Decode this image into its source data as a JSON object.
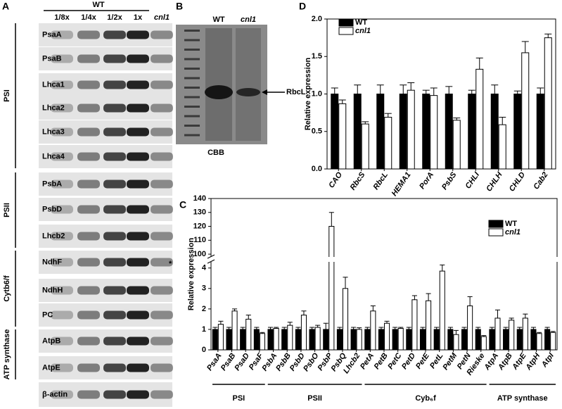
{
  "panel_a": {
    "label": "A",
    "header": "WT",
    "lanes": [
      "1/8x",
      "1/4x",
      "1/2x",
      "1x",
      "cnl1"
    ],
    "groups": [
      {
        "name": "PSI",
        "rows": [
          "PsaA",
          "PsaB",
          "Lhca1",
          "Lhca2",
          "Lhca3",
          "Lhca4"
        ]
      },
      {
        "name": "PSII",
        "rows": [
          "PsbA",
          "PsbD",
          "Lhcb2"
        ]
      },
      {
        "name": "Cytb6/f",
        "rows": [
          "NdhF",
          "NdhH",
          "PC"
        ]
      },
      {
        "name": "ATP synthase",
        "rows": [
          "AtpB",
          "AtpE"
        ]
      }
    ],
    "control": "β-actin",
    "note": "*"
  },
  "panel_b": {
    "label": "B",
    "lanes": [
      "WT",
      "cnl1"
    ],
    "band": "RbcL",
    "stain": "CBB"
  },
  "chart_data": [
    {
      "type": "bar",
      "label": "C",
      "ylabel": "Relative expression",
      "groups": [
        {
          "name": "PSI",
          "categories": [
            "PsaA",
            "PsaB",
            "PsaD",
            "PsaF"
          ]
        },
        {
          "name": "PSII",
          "categories": [
            "PsbA",
            "PsbB",
            "PsbD",
            "PsbO",
            "PsbP",
            "PsbQ",
            "Lhcb2"
          ]
        },
        {
          "name": "Cyb₆f",
          "categories": [
            "PetA",
            "PetB",
            "PetC",
            "PetD",
            "PetE",
            "PetL",
            "PetM",
            "PetN",
            "Rieske"
          ]
        },
        {
          "name": "ATP synthase",
          "categories": [
            "AtpA",
            "AtpB",
            "AtpE",
            "AtpH",
            "AtpI"
          ]
        }
      ],
      "series": [
        {
          "name": "WT",
          "color": "#000000",
          "values": [
            1,
            1,
            1,
            1,
            1,
            1,
            1,
            1,
            1,
            1,
            1,
            1,
            1,
            1,
            1,
            1,
            1,
            1,
            1,
            1,
            1,
            1,
            1,
            1,
            1
          ],
          "errors": [
            0.1,
            0.1,
            0.1,
            0.1,
            0.1,
            0.1,
            0.1,
            0.1,
            0.3,
            0.1,
            0.1,
            0.1,
            0.1,
            0.1,
            0.1,
            0.1,
            0.1,
            0.1,
            0.1,
            0.1,
            0.1,
            0.1,
            0.1,
            0.1,
            0.1
          ]
        },
        {
          "name": "cnl1",
          "color": "#ffffff",
          "values": [
            1.25,
            1.9,
            1.5,
            0.8,
            1.05,
            1.2,
            1.7,
            1.1,
            120,
            3.0,
            1.0,
            1.9,
            1.3,
            1.05,
            2.45,
            2.4,
            3.85,
            0.75,
            2.15,
            0.65,
            1.55,
            1.45,
            1.55,
            0.8,
            0.85
          ],
          "errors": [
            0.15,
            0.1,
            0.2,
            0.05,
            0.05,
            0.15,
            0.2,
            0.1,
            10,
            0.55,
            0.08,
            0.25,
            0.1,
            0.05,
            0.2,
            0.35,
            0.3,
            0.2,
            0.45,
            0.05,
            0.4,
            0.1,
            0.2,
            0.05,
            0.05
          ]
        }
      ],
      "ylim": [
        0,
        140
      ],
      "ybreak": [
        4.3,
        98
      ],
      "yticks": [
        0,
        1,
        2,
        3,
        4,
        100,
        110,
        120,
        130,
        140
      ],
      "legend": "upper right"
    },
    {
      "type": "bar",
      "label": "D",
      "ylabel": "Relative expression",
      "categories": [
        "CAO",
        "RbcS",
        "RbcL",
        "HEMA1",
        "PorA",
        "PsbS",
        "CHLI",
        "CHLH",
        "CHLD",
        "Cab2"
      ],
      "series": [
        {
          "name": "WT",
          "color": "#000000",
          "values": [
            1,
            1,
            1,
            1,
            1,
            1,
            1,
            1,
            1,
            1
          ],
          "errors": [
            0.08,
            0.12,
            0.12,
            0.12,
            0.05,
            0.1,
            0.05,
            0.12,
            0.04,
            0.08
          ]
        },
        {
          "name": "cnl1",
          "color": "#ffffff",
          "values": [
            0.87,
            0.6,
            0.69,
            1.05,
            0.98,
            0.65,
            1.33,
            0.59,
            1.55,
            1.75
          ],
          "errors": [
            0.05,
            0.03,
            0.05,
            0.1,
            0.1,
            0.03,
            0.15,
            0.1,
            0.15,
            0.05
          ]
        }
      ],
      "ylim": [
        0,
        2
      ],
      "yticks": [
        {
          "value": 0,
          "label": "0.0"
        },
        0.5,
        {
          "value": 1,
          "label": "1.0"
        },
        1.5,
        {
          "value": 2,
          "label": "2.0"
        }
      ],
      "legend": "upper left"
    }
  ]
}
